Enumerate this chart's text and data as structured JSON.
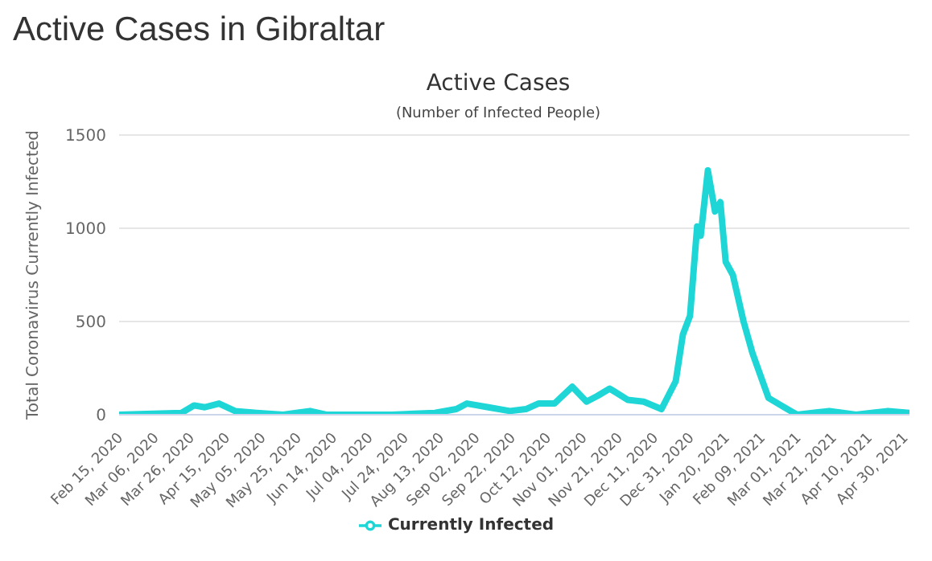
{
  "chart_data": {
    "type": "line",
    "title": "Active Cases in Gibraltar",
    "subtitle": "Active Cases",
    "annotations": [
      "(Number of Infected People)"
    ],
    "ylabel": "Total Coronavirus Currently Infected",
    "x": [
      "2020-02-15",
      "2020-03-21",
      "2020-03-28",
      "2020-04-03",
      "2020-04-11",
      "2020-04-20",
      "2020-05-02",
      "2020-05-17",
      "2020-06-01",
      "2020-06-10",
      "2020-07-17",
      "2020-08-10",
      "2020-08-22",
      "2020-08-28",
      "2020-09-09",
      "2020-09-21",
      "2020-09-30",
      "2020-10-07",
      "2020-10-16",
      "2020-10-26",
      "2020-11-03",
      "2020-11-09",
      "2020-11-16",
      "2020-11-26",
      "2020-12-05",
      "2020-12-15",
      "2020-12-23",
      "2020-12-27",
      "2020-12-31",
      "2021-01-04",
      "2021-01-06",
      "2021-01-10",
      "2021-01-14",
      "2021-01-17",
      "2021-01-20",
      "2021-01-24",
      "2021-01-30",
      "2021-02-04",
      "2021-02-13",
      "2021-02-20",
      "2021-03-01",
      "2021-03-19",
      "2021-04-03",
      "2021-04-21",
      "2021-05-03"
    ],
    "series": [
      {
        "name": "Currently Infected",
        "color": "#1ed6d6",
        "values": [
          0,
          10,
          50,
          40,
          60,
          20,
          10,
          0,
          20,
          0,
          0,
          10,
          30,
          60,
          40,
          20,
          30,
          60,
          60,
          150,
          70,
          100,
          140,
          80,
          70,
          30,
          180,
          430,
          530,
          1010,
          960,
          1310,
          1090,
          1140,
          820,
          750,
          500,
          330,
          90,
          50,
          0,
          20,
          0,
          20,
          10
        ]
      }
    ],
    "xlim": [
      "2020-02-15",
      "2021-05-03"
    ],
    "xticks": [
      {
        "value": "2020-02-15",
        "label": "Feb 15, 2020"
      },
      {
        "value": "2020-03-06",
        "label": "Mar 06, 2020"
      },
      {
        "value": "2020-03-26",
        "label": "Mar 26, 2020"
      },
      {
        "value": "2020-04-15",
        "label": "Apr 15, 2020"
      },
      {
        "value": "2020-05-05",
        "label": "May 05, 2020"
      },
      {
        "value": "2020-05-25",
        "label": "May 25, 2020"
      },
      {
        "value": "2020-06-14",
        "label": "Jun 14, 2020"
      },
      {
        "value": "2020-07-04",
        "label": "Jul 04, 2020"
      },
      {
        "value": "2020-07-24",
        "label": "Jul 24, 2020"
      },
      {
        "value": "2020-08-13",
        "label": "Aug 13, 2020"
      },
      {
        "value": "2020-09-02",
        "label": "Sep 02, 2020"
      },
      {
        "value": "2020-09-22",
        "label": "Sep 22, 2020"
      },
      {
        "value": "2020-10-12",
        "label": "Oct 12, 2020"
      },
      {
        "value": "2020-11-01",
        "label": "Nov 01, 2020"
      },
      {
        "value": "2020-11-21",
        "label": "Nov 21, 2020"
      },
      {
        "value": "2020-12-11",
        "label": "Dec 11, 2020"
      },
      {
        "value": "2020-12-31",
        "label": "Dec 31, 2020"
      },
      {
        "value": "2021-01-20",
        "label": "Jan 20, 2021"
      },
      {
        "value": "2021-02-09",
        "label": "Feb 09, 2021"
      },
      {
        "value": "2021-03-01",
        "label": "Mar 01, 2021"
      },
      {
        "value": "2021-03-21",
        "label": "Mar 21, 2021"
      },
      {
        "value": "2021-04-10",
        "label": "Apr 10, 2021"
      },
      {
        "value": "2021-04-30",
        "label": "Apr 30, 2021"
      }
    ],
    "ylim": [
      0,
      1500
    ],
    "yticks": [
      0,
      500,
      1000,
      1500
    ],
    "grid": "y",
    "legend": "bottom",
    "marker": "none",
    "line_style": "solid"
  }
}
